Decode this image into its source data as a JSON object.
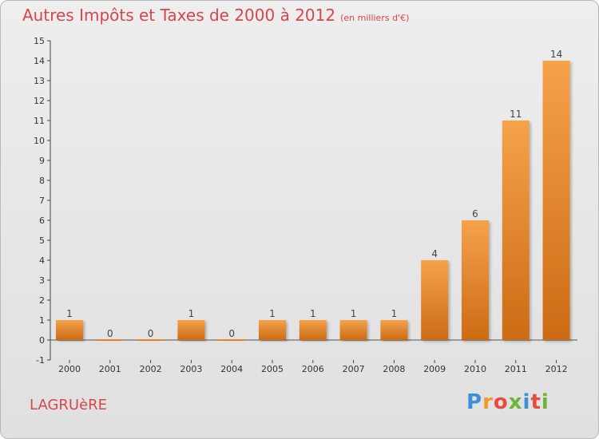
{
  "page": {
    "title": "Autres Impôts et Taxes de 2000 à 2012",
    "unit": "(en milliers d'€)",
    "commune": "LAGRUèRE",
    "logo_letters": [
      "P",
      "r",
      "o",
      "x",
      "i",
      "t",
      "i"
    ],
    "logo_colors": [
      "#3d8fd9",
      "#f09a28",
      "#e94b42",
      "#6ab636",
      "#3d8fd9",
      "#e94b42",
      "#6ab636"
    ]
  },
  "chart_data": {
    "type": "bar",
    "title": "Autres Impôts et Taxes de 2000 à 2012",
    "ylabel": "(en milliers d'€)",
    "categories": [
      "2000",
      "2001",
      "2002",
      "2003",
      "2004",
      "2005",
      "2006",
      "2007",
      "2008",
      "2009",
      "2010",
      "2011",
      "2012"
    ],
    "values": [
      1,
      0,
      0,
      1,
      0,
      1,
      1,
      1,
      1,
      4,
      6,
      11,
      14
    ],
    "ylim": [
      -1,
      15
    ],
    "yticks": [
      -1,
      0,
      1,
      2,
      3,
      4,
      5,
      6,
      7,
      8,
      9,
      10,
      11,
      12,
      13,
      14,
      15
    ],
    "grid": false,
    "bar_color": "#e8862a"
  }
}
